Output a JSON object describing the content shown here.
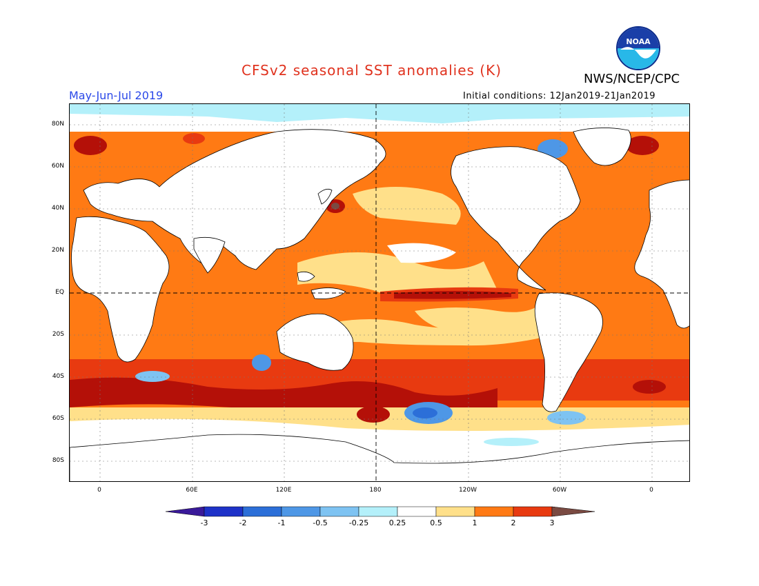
{
  "header": {
    "title": "CFSv2 seasonal SST anomalies (K)",
    "agency": "NWS/NCEP/CPC",
    "season": "May-Jun-Jul 2019",
    "initial_conditions": "Initial conditions: 12Jan2019-21Jan2019",
    "logo_text": "NOAA"
  },
  "axes": {
    "lat_labels": [
      "80N",
      "60N",
      "40N",
      "20N",
      "EQ",
      "20S",
      "40S",
      "60S",
      "80S"
    ],
    "lon_labels": [
      "0",
      "60E",
      "120E",
      "180",
      "120W",
      "60W",
      "0"
    ]
  },
  "colorbar": {
    "labels": [
      "-3",
      "-2",
      "-1",
      "-0.5",
      "-0.25",
      "0.25",
      "0.5",
      "1",
      "2",
      "3"
    ],
    "colors": [
      "#1e32c8",
      "#2c6fd8",
      "#4e97e6",
      "#7ec3f2",
      "#b4f0fa",
      "#ffffff",
      "#ffe08a",
      "#ff7a14",
      "#e83a10",
      "#b41008",
      "#7a4a42"
    ]
  }
}
